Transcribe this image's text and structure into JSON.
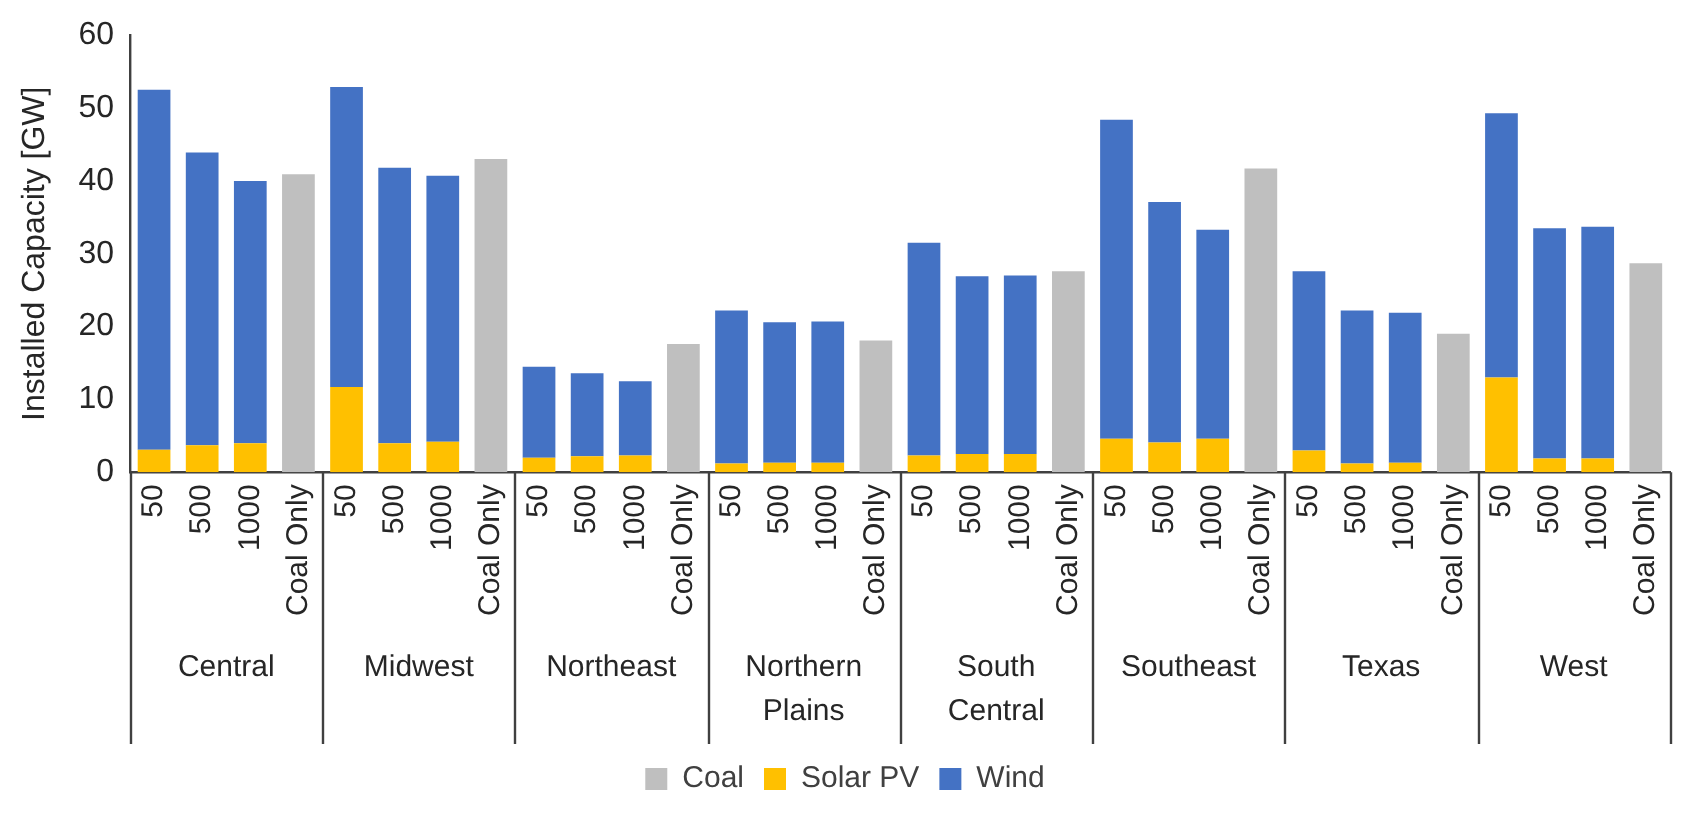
{
  "chart_data": {
    "type": "bar",
    "stacked": true,
    "ylabel": "Installed Capacity [GW]",
    "categories": [
      "50",
      "500",
      "1000",
      "Coal Only",
      "50",
      "500",
      "1000",
      "Coal Only",
      "50",
      "500",
      "1000",
      "Coal Only",
      "50",
      "500",
      "1000",
      "Coal Only",
      "50",
      "500",
      "1000",
      "Coal Only",
      "50",
      "500",
      "1000",
      "Coal Only",
      "50",
      "500",
      "1000",
      "Coal Only",
      "50",
      "500",
      "1000",
      "Coal Only"
    ],
    "annotations": [
      "Central",
      "Midwest",
      "Northeast",
      "Northern Plains",
      "South Central",
      "Southeast",
      "Texas",
      "West"
    ],
    "series": [
      {
        "name": "Coal",
        "color": "#bfbfbf",
        "values": [
          null,
          null,
          null,
          40.9,
          null,
          null,
          null,
          43.0,
          null,
          null,
          null,
          17.6,
          null,
          null,
          null,
          18.1,
          null,
          null,
          null,
          27.6,
          null,
          null,
          null,
          41.7,
          null,
          null,
          null,
          19.0,
          null,
          null,
          null,
          28.7
        ]
      },
      {
        "name": "Solar PV",
        "color": "#ffc000",
        "values": [
          3.1,
          3.7,
          4.0,
          null,
          11.7,
          4.0,
          4.2,
          null,
          2.0,
          2.2,
          2.3,
          null,
          1.2,
          1.3,
          1.3,
          null,
          2.3,
          2.5,
          2.5,
          null,
          4.6,
          4.1,
          4.6,
          null,
          3.0,
          1.2,
          1.3,
          null,
          13.0,
          1.9,
          1.9,
          null
        ]
      },
      {
        "name": "Wind",
        "color": "#4472c4",
        "values": [
          49.4,
          40.2,
          36.0,
          null,
          41.2,
          37.8,
          36.5,
          null,
          12.5,
          11.4,
          10.2,
          null,
          21.0,
          19.3,
          19.4,
          null,
          29.2,
          24.4,
          24.5,
          null,
          43.8,
          33.0,
          28.7,
          null,
          24.6,
          21.0,
          20.6,
          null,
          36.3,
          31.6,
          31.8,
          null
        ]
      }
    ],
    "ylim": [
      0,
      60
    ],
    "yticks": [
      0,
      10,
      20,
      30,
      40,
      50,
      60
    ],
    "grid": false,
    "legend": "bottom"
  }
}
